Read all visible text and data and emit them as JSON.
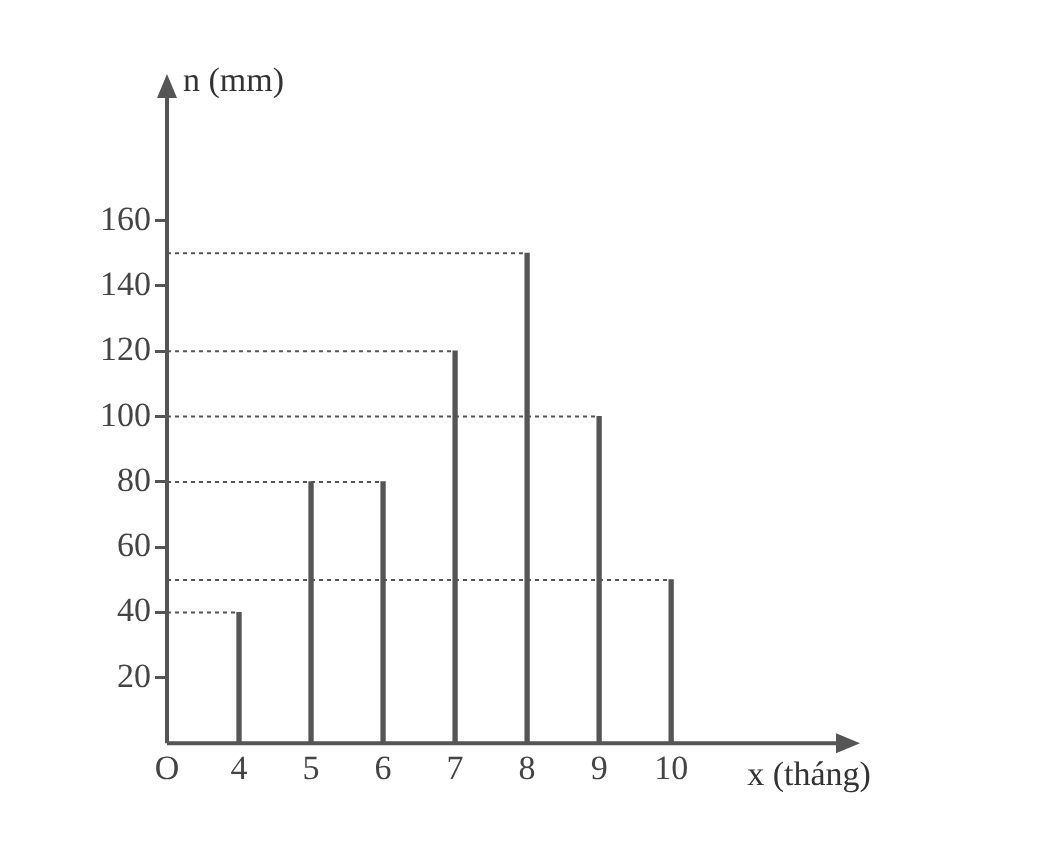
{
  "chart_data": {
    "type": "bar",
    "xlabel": "x (tháng)",
    "ylabel": "n (mm)",
    "x": [
      4,
      5,
      6,
      7,
      8,
      9,
      10
    ],
    "values": [
      40,
      80,
      80,
      120,
      150,
      100,
      50
    ],
    "color": "#555555",
    "xlim": [
      3,
      12.4
    ],
    "xticks": [
      {
        "value": 3,
        "label": "O"
      },
      4,
      5,
      6,
      7,
      8,
      9,
      10
    ],
    "ylim": [
      0,
      200
    ],
    "yticks": [
      20,
      40,
      60,
      80,
      100,
      120,
      140,
      160
    ],
    "ref_lines": [
      {
        "axis": "y",
        "value": 40,
        "line_style": "dotted"
      },
      {
        "axis": "y",
        "value": 80,
        "line_style": "dotted"
      },
      {
        "axis": "y",
        "value": 120,
        "line_style": "dotted"
      },
      {
        "axis": "y",
        "value": 150,
        "line_style": "dotted"
      },
      {
        "axis": "y",
        "value": 100,
        "line_style": "dotted"
      },
      {
        "axis": "y",
        "value": 50,
        "line_style": "dotted"
      }
    ],
    "grid": false,
    "legend": false
  }
}
